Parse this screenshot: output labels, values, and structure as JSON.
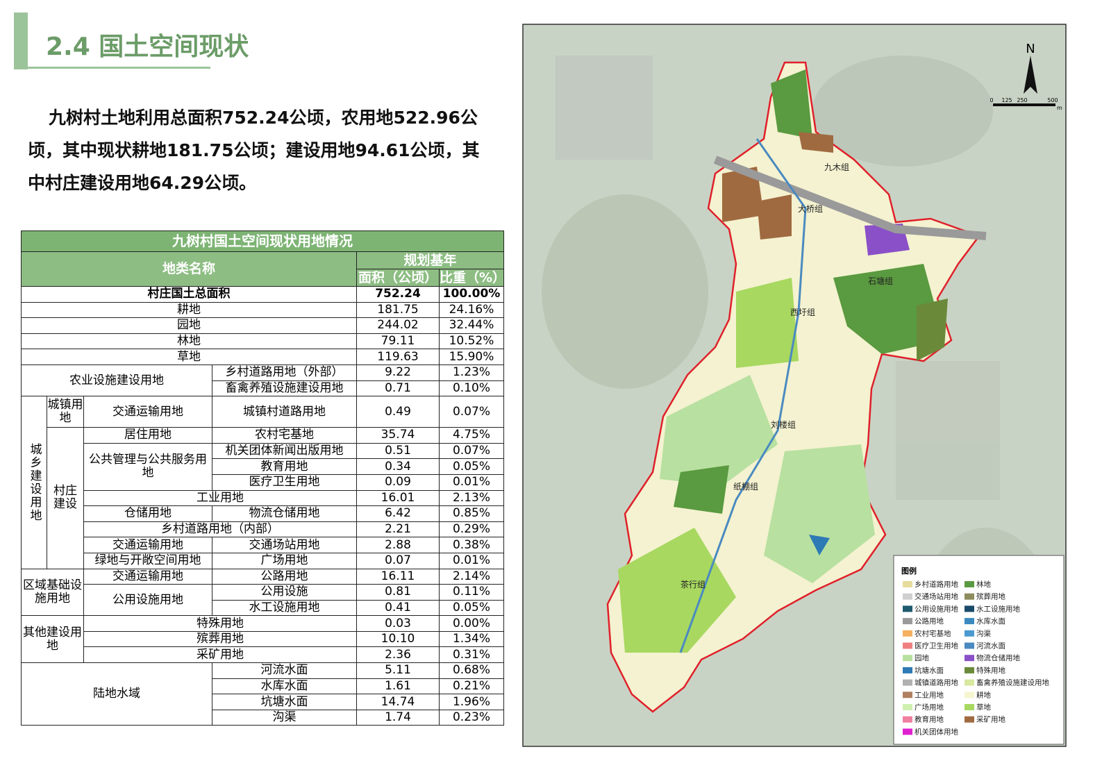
{
  "header": {
    "title": "2.4 国土空间现状"
  },
  "summary": "九树村土地利用总面积752.24公顷，农用地522.96公顷，其中现状耕地181.75公顷；建设用地94.61公顷，其中村庄建设用地64.29公顷。",
  "table": {
    "title": "九树村国土空间现状用地情况",
    "rows": [
      [
        "地类名称",
        "规划基年"
      ],
      [
        "面积（公顷）",
        "比重（%）"
      ],
      [
        "村庄国土总面积",
        "752.24",
        "100.00%"
      ],
      [
        "耕地",
        "181.75",
        "24.16%"
      ],
      [
        "园地",
        "244.02",
        "32.44%"
      ],
      [
        "林地",
        "79.11",
        "10.52%"
      ],
      [
        "草地",
        "119.63",
        "15.90%"
      ],
      [
        "农业设施建设用地",
        "乡村道路用地（外部）",
        "9.22",
        "1.23%"
      ],
      [
        "畜禽养殖设施建设用地",
        "0.71",
        "0.10%"
      ],
      [
        "城乡建设用地",
        "城镇用地",
        "交通运输用地",
        "城镇村道路用地",
        "0.49",
        "0.07%"
      ],
      [
        "村庄建设",
        "居住用地",
        "农村宅基地",
        "35.74",
        "4.75%"
      ],
      [
        "公共管理与公共服务用地",
        "机关团体新闻出版用地",
        "0.51",
        "0.07%"
      ],
      [
        "教育用地",
        "0.34",
        "0.05%"
      ],
      [
        "医疗卫生用地",
        "0.09",
        "0.01%"
      ],
      [
        "工业用地",
        "16.01",
        "2.13%"
      ],
      [
        "仓储用地",
        "物流仓储用地",
        "6.42",
        "0.85%"
      ],
      [
        "乡村道路用地（内部）",
        "2.21",
        "0.29%"
      ],
      [
        "交通运输用地",
        "交通场站用地",
        "2.88",
        "0.38%"
      ],
      [
        "绿地与开敞空间用地",
        "广场用地",
        "0.07",
        "0.01%"
      ],
      [
        "区域基础设施用地",
        "交通运输用地",
        "公路用地",
        "16.11",
        "2.14%"
      ],
      [
        "公用设施用地",
        "公用设施",
        "0.81",
        "0.11%"
      ],
      [
        "水工设施用地",
        "0.41",
        "0.05%"
      ],
      [
        "其他建设用地",
        "特殊用地",
        "0.03",
        "0.00%"
      ],
      [
        "殡葬用地",
        "10.10",
        "1.34%"
      ],
      [
        "采矿用地",
        "2.36",
        "0.31%"
      ],
      [
        "陆地水域",
        "河流水面",
        "5.11",
        "0.68%"
      ],
      [
        "水库水面",
        "1.61",
        "0.21%"
      ],
      [
        "坑塘水面",
        "14.74",
        "1.96%"
      ],
      [
        "沟渠",
        "1.74",
        "0.23%"
      ]
    ]
  },
  "map": {
    "north": "N",
    "scale": [
      "0",
      "125",
      "250",
      "500",
      "m"
    ],
    "labels": [
      "九木组",
      "大桥组",
      "石塘组",
      "西圩组",
      "刘楼组",
      "纸棚组",
      "茶行组"
    ],
    "legend": {
      "title": "图例",
      "items": [
        {
          "label": "乡村道路用地",
          "color": "#e6dc9c"
        },
        {
          "label": "林地",
          "color": "#5a9a40"
        },
        {
          "label": "交通场站用地",
          "color": "#cfcfcf"
        },
        {
          "label": "殡葬用地",
          "color": "#8c8c5c"
        },
        {
          "label": "公用设施用地",
          "color": "#1e5b6e"
        },
        {
          "label": "水工设施用地",
          "color": "#1a4a6a"
        },
        {
          "label": "公路用地",
          "color": "#9a9a9a"
        },
        {
          "label": "水库水面",
          "color": "#3a8ac0"
        },
        {
          "label": "农村宅基地",
          "color": "#f5b060"
        },
        {
          "label": "沟渠",
          "color": "#4a9ad0"
        },
        {
          "label": "医疗卫生用地",
          "color": "#f08080"
        },
        {
          "label": "河流水面",
          "color": "#4a8ac0"
        },
        {
          "label": "园地",
          "color": "#b8e0a0"
        },
        {
          "label": "物流仓储用地",
          "color": "#8a50c8"
        },
        {
          "label": "坑塘水面",
          "color": "#2e7ab5"
        },
        {
          "label": "特殊用地",
          "color": "#6a8a3a"
        },
        {
          "label": "城镇道路用地",
          "color": "#b0b0b0"
        },
        {
          "label": "畜禽养殖设施建设用地",
          "color": "#d8e8a0"
        },
        {
          "label": "工业用地",
          "color": "#b08060"
        },
        {
          "label": "耕地",
          "color": "#f5f5d0"
        },
        {
          "label": "广场用地",
          "color": "#d0f0b0"
        },
        {
          "label": "草地",
          "color": "#a8d860"
        },
        {
          "label": "教育用地",
          "color": "#f080a0"
        },
        {
          "label": "采矿用地",
          "color": "#a06a40"
        },
        {
          "label": "机关团体用地",
          "color": "#e020d0"
        }
      ]
    }
  }
}
